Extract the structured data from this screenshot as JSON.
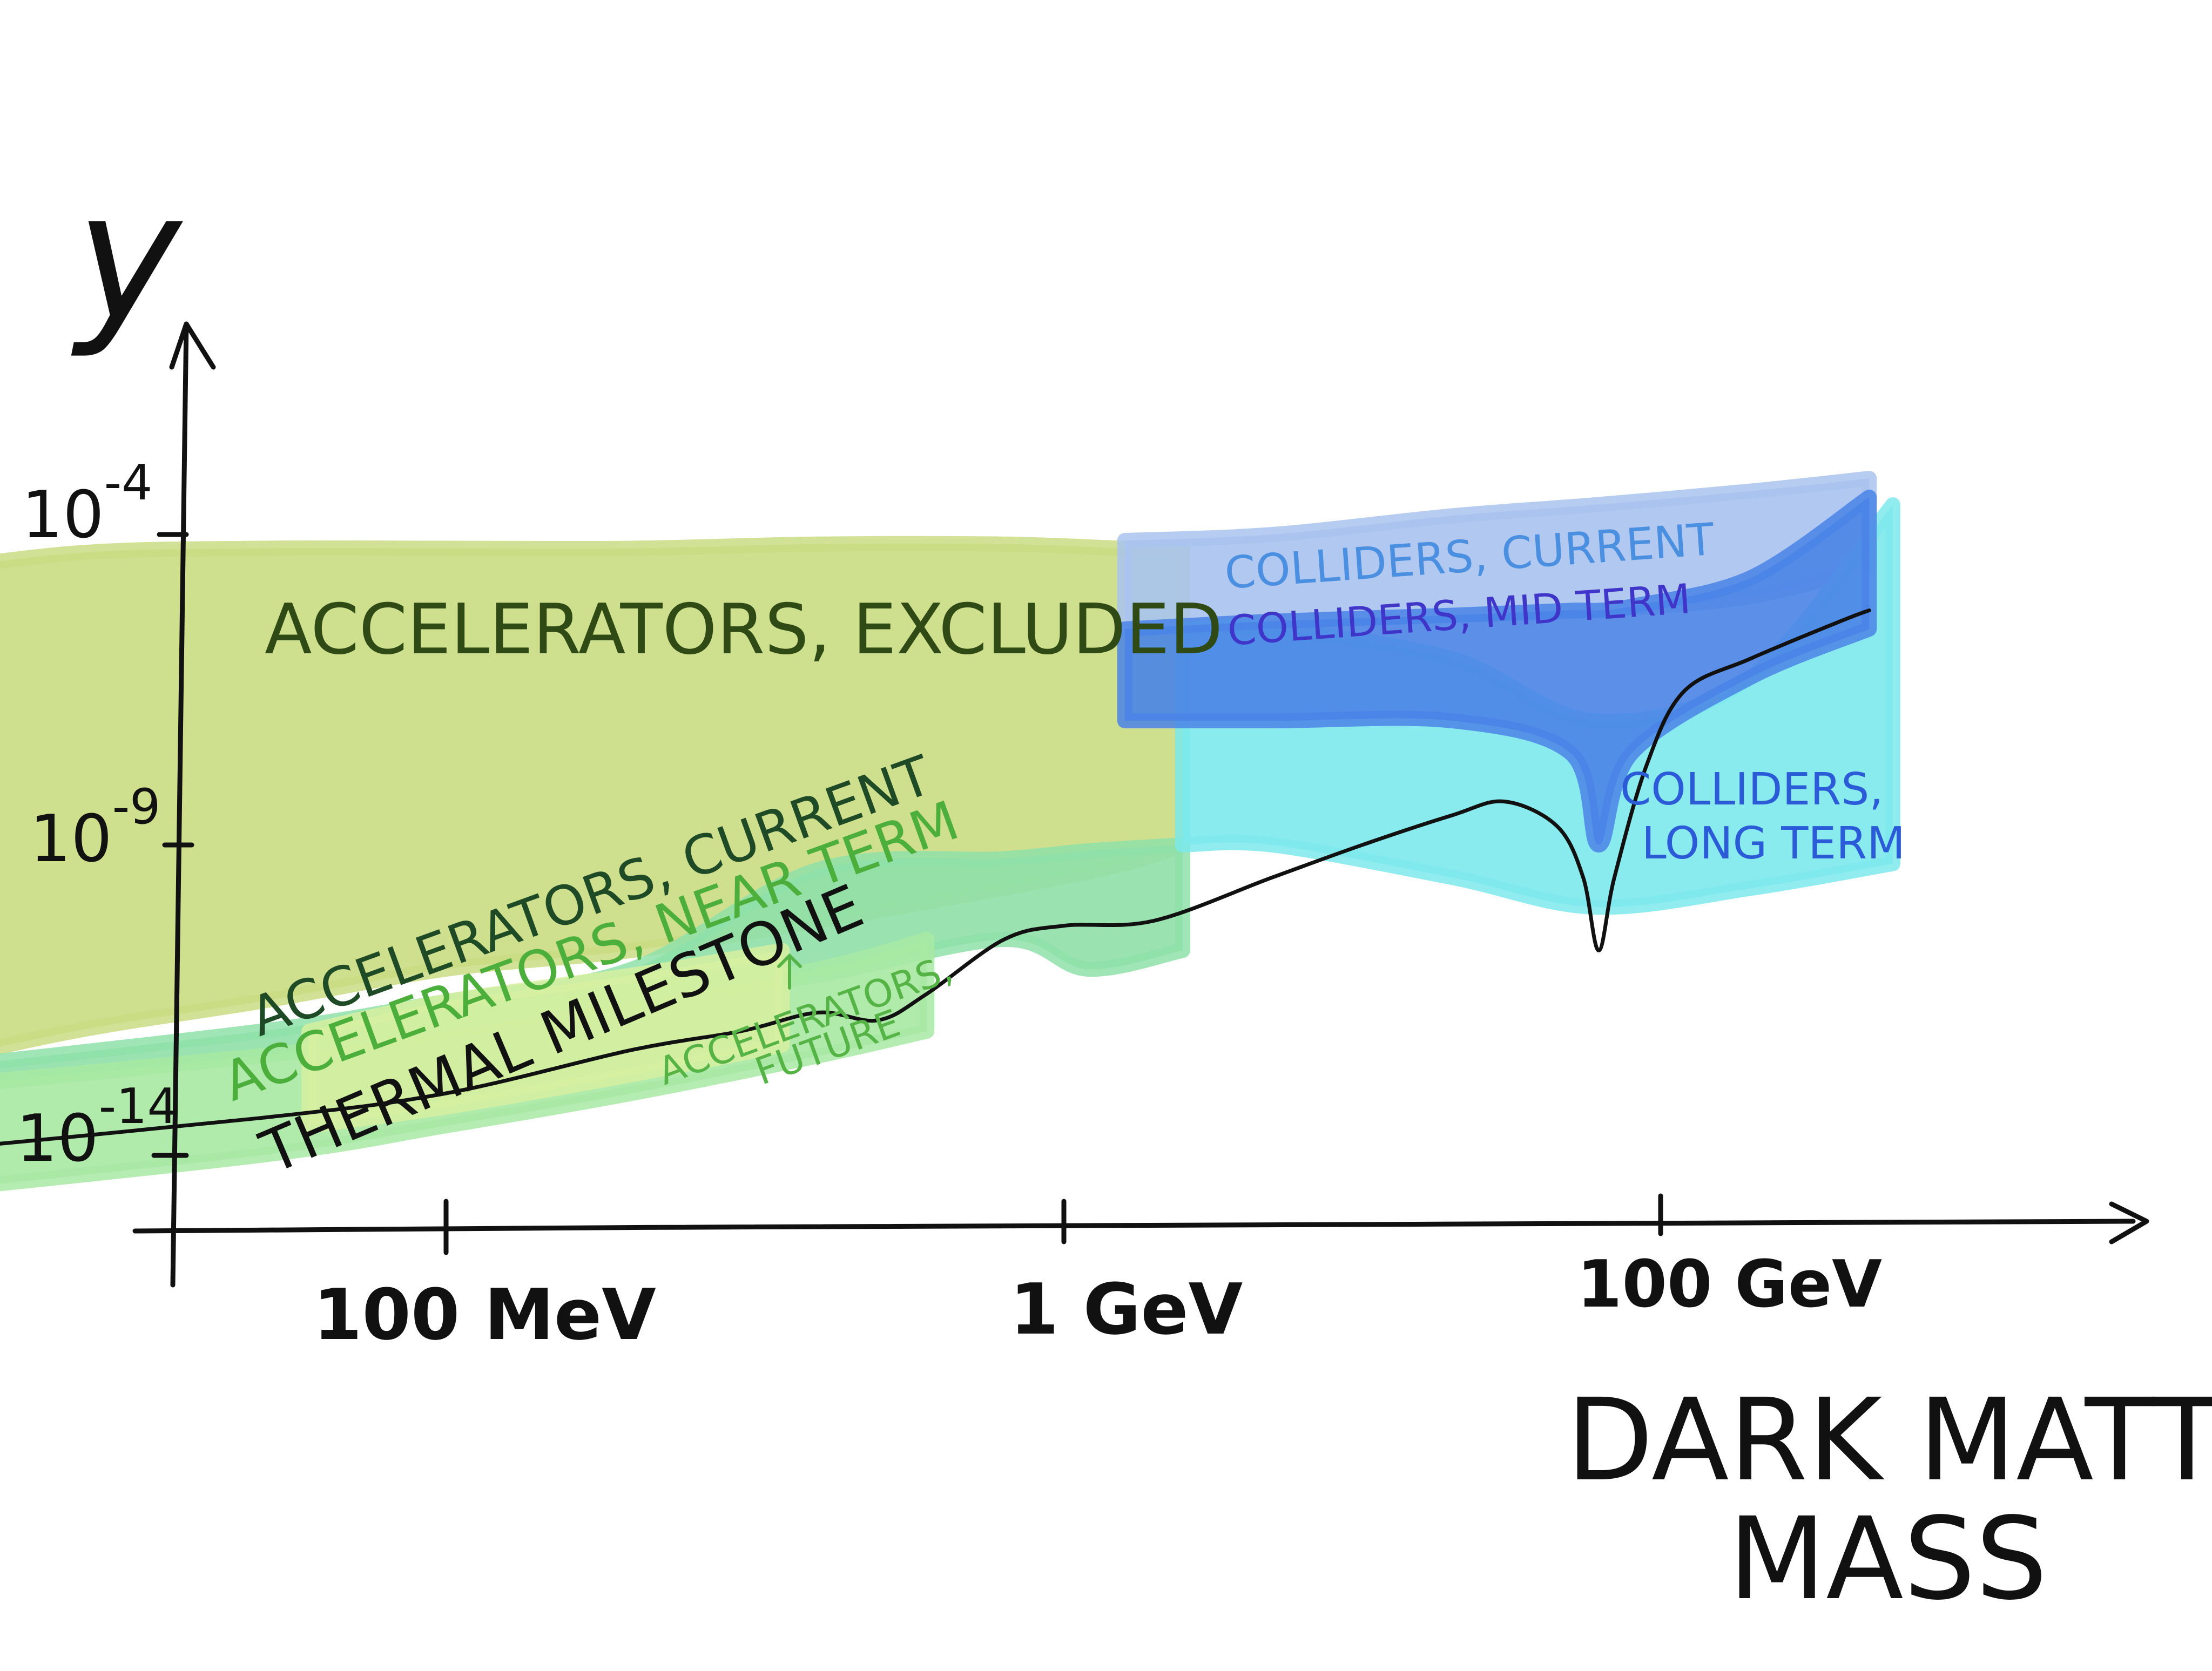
{
  "chart_data": {
    "type": "area",
    "title": "",
    "ylabel": "y",
    "xlabel": "DARK MATTER MASS",
    "xlabel_lines": [
      "DARK MATTER",
      "MASS"
    ],
    "x_scale": "log",
    "y_scale": "log",
    "x_ticks": [
      {
        "value": 0.1,
        "label": "100 MeV"
      },
      {
        "value": 1,
        "label": "1 GeV"
      },
      {
        "value": 100,
        "label": "100 GeV"
      }
    ],
    "y_ticks": [
      {
        "value": 0.0001,
        "label": "10-4",
        "base": "10",
        "exp": "-4"
      },
      {
        "value": 1e-09,
        "label": "10-9",
        "base": "10",
        "exp": "-9"
      },
      {
        "value": 1e-14,
        "label": "10-14",
        "base": "10",
        "exp": "-14"
      }
    ],
    "xlim_GeV": [
      0.01,
      700
    ],
    "ylim": [
      1e-16,
      0.1
    ],
    "regions": [
      {
        "name": "ACCELERATORS, EXCLUDED",
        "label": "ACCELERATORS, EXCLUDED",
        "color": "#c9dc82",
        "x_GeV": [
          0.012,
          0.025,
          0.05,
          0.1,
          0.2,
          0.4,
          0.8,
          1.6,
          2.5
        ],
        "y_low": [
          2e-13,
          1e-12,
          3e-12,
          1e-11,
          2e-11,
          6e-11,
          2e-10,
          5e-10,
          1e-09
        ],
        "y_high": [
          2e-05,
          5e-05,
          6e-05,
          6e-05,
          6e-05,
          7e-05,
          7e-05,
          6e-05,
          6e-05
        ]
      },
      {
        "name": "ACCELERATORS, CURRENT",
        "label": "ACCELERATORS, CURRENT",
        "color": "#8fe0a9",
        "x_GeV": [
          0.012,
          0.05,
          0.1,
          0.2,
          0.4,
          0.8,
          1.2,
          2.5
        ],
        "y_low": [
          1e-13,
          4e-13,
          1e-12,
          3e-12,
          8e-12,
          3e-11,
          1e-11,
          2e-11
        ],
        "y_high": [
          2e-13,
          1e-12,
          3e-12,
          1e-11,
          4e-10,
          6e-10,
          8e-10,
          1e-09
        ]
      },
      {
        "name": "ACCELERATORS, NEAR TERM",
        "label": "ACCELERATORS, NEAR TERM",
        "color": "#a8e9a3",
        "x_GeV": [
          0.011,
          0.05,
          0.1,
          0.2,
          0.4,
          0.6
        ],
        "y_low": [
          2e-15,
          1e-14,
          3e-14,
          1e-13,
          4e-13,
          1e-12
        ],
        "y_high": [
          1e-13,
          4e-13,
          1e-12,
          3e-12,
          1e-11,
          3e-11
        ]
      },
      {
        "name": "ACCELERATORS, FUTURE",
        "label_lines": [
          "ACCELERATORS,",
          "FUTURE"
        ],
        "color": "#d6f0a0",
        "x_GeV": [
          0.06,
          0.1,
          0.2,
          0.35
        ],
        "y_low": [
          3e-14,
          6e-14,
          2e-13,
          6e-13
        ],
        "y_high": [
          1e-12,
          3e-12,
          8e-12,
          2e-11
        ]
      },
      {
        "name": "COLLIDERS, CURRENT",
        "label": "COLLIDERS, CURRENT",
        "color": "#a9c3ee",
        "x_GeV": [
          1.6,
          5,
          20,
          60,
          200,
          500
        ],
        "y_low": [
          3e-06,
          4e-06,
          5e-06,
          6e-06,
          1e-05,
          3e-05
        ],
        "y_high": [
          8e-05,
          0.0001,
          0.0002,
          0.0003,
          0.0005,
          0.0008
        ]
      },
      {
        "name": "COLLIDERS, MID TERM",
        "label": "COLLIDERS, MID TERM",
        "color": "#4a84e6",
        "x_GeV": [
          1.6,
          5,
          20,
          50,
          62,
          80,
          200,
          500
        ],
        "y_low": [
          1e-07,
          1e-07,
          1e-07,
          3e-08,
          1e-09,
          3e-08,
          5e-07,
          3e-06
        ],
        "y_high": [
          3e-06,
          4e-06,
          5e-06,
          6e-06,
          6e-06,
          7e-06,
          2e-05,
          0.0004
        ]
      },
      {
        "name": "COLLIDERS, LONG TERM",
        "label_lines": [
          "COLLIDERS,",
          "LONG TERM"
        ],
        "color": "#7de9ec",
        "x_GeV": [
          2.5,
          5,
          20,
          60,
          200,
          600
        ],
        "y_low": [
          1e-09,
          1e-09,
          3e-10,
          1e-10,
          2e-10,
          5e-10
        ],
        "y_high": [
          3e-06,
          3e-06,
          1e-06,
          1e-07,
          5e-07,
          0.0003
        ]
      }
    ],
    "series": [
      {
        "name": "THERMAL MILESTONE",
        "label": "THERMAL MILESTONE",
        "color": "#111111",
        "x": [
          0.012,
          0.05,
          0.1,
          0.2,
          0.3,
          0.4,
          0.5,
          0.6,
          0.8,
          1,
          2,
          5,
          10,
          20,
          30,
          45,
          55,
          62,
          70,
          90,
          120,
          200,
          400,
          500
        ],
        "y": [
          1e-14,
          4e-14,
          1e-13,
          5e-13,
          1e-12,
          2e-12,
          1.5e-12,
          4e-12,
          3e-11,
          5e-11,
          6e-11,
          3e-10,
          1e-09,
          3e-09,
          5e-09,
          2e-09,
          3e-10,
          2e-11,
          3e-10,
          2e-08,
          3e-07,
          1e-06,
          4e-06,
          6e-06
        ]
      }
    ]
  }
}
